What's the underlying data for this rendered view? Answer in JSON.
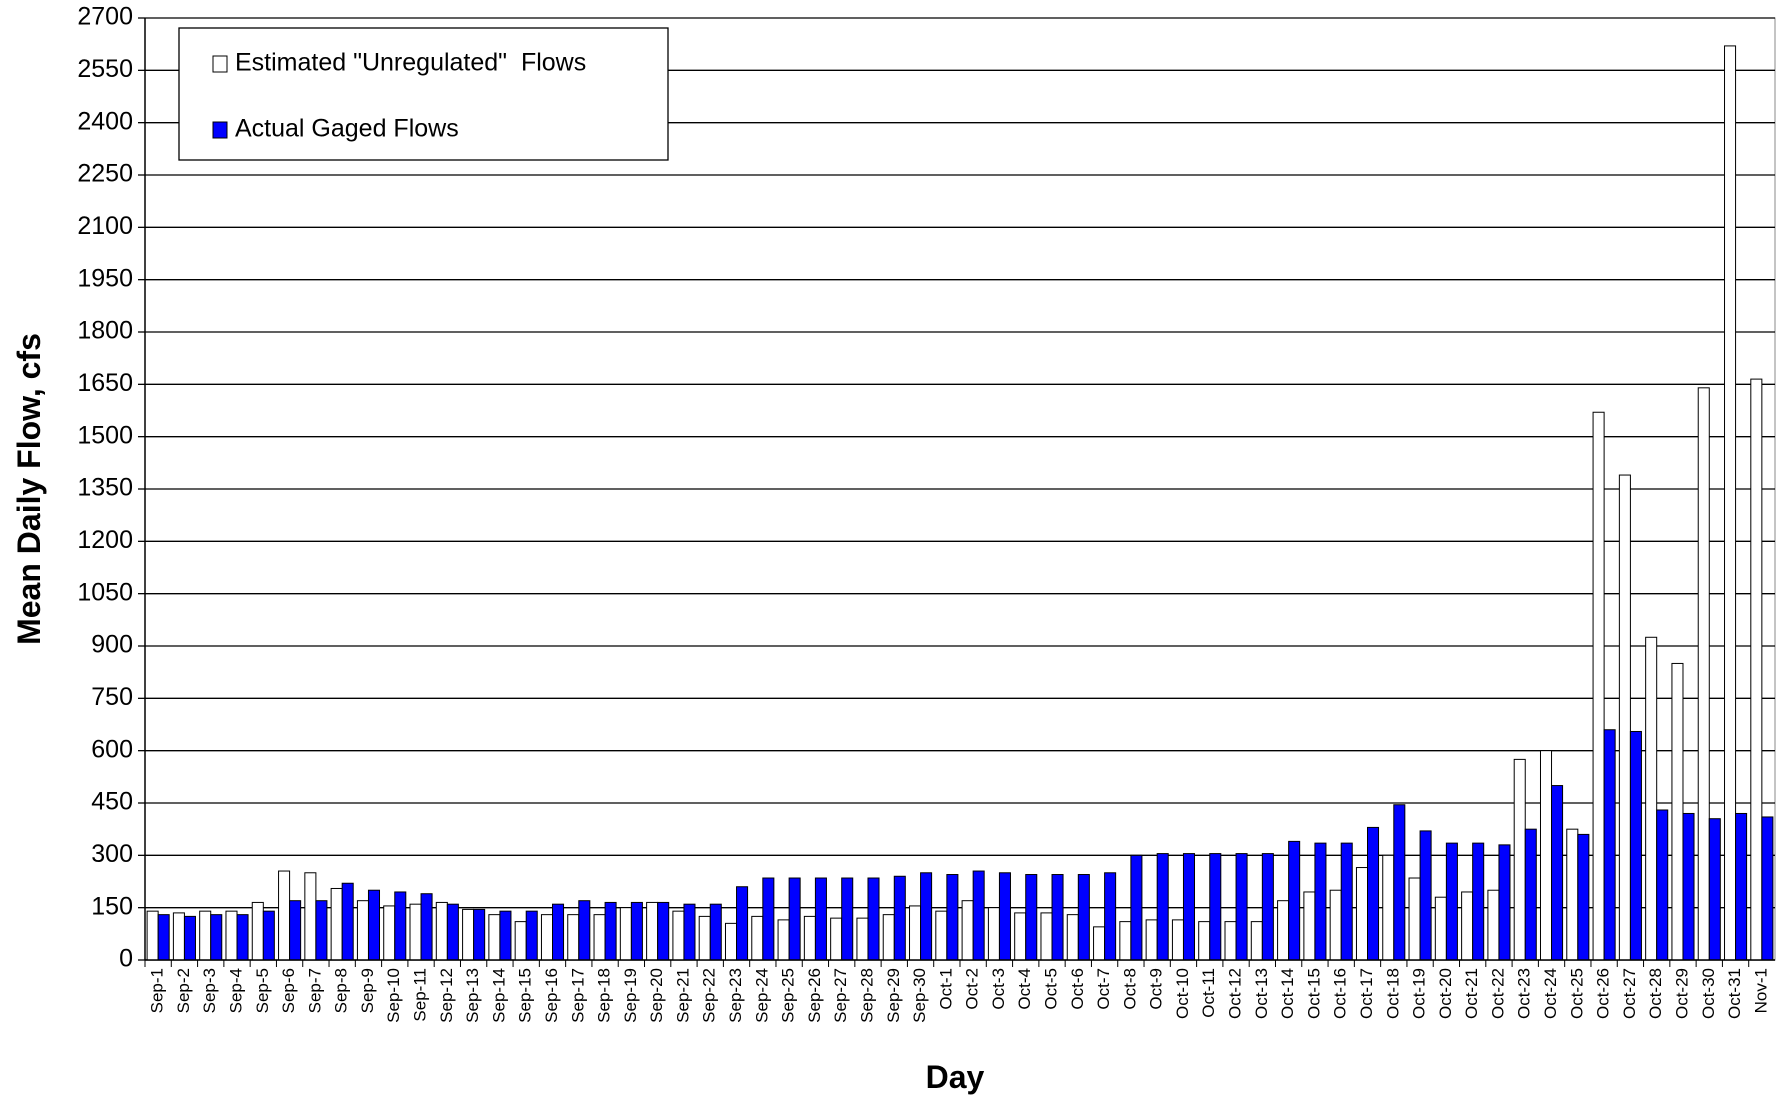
{
  "chart_data": {
    "type": "bar",
    "x_label": "Day",
    "y_label": "Mean Daily Flow, cfs",
    "categories": [
      "Sep-1",
      "Sep-2",
      "Sep-3",
      "Sep-4",
      "Sep-5",
      "Sep-6",
      "Sep-7",
      "Sep-8",
      "Sep-9",
      "Sep-10",
      "Sep-11",
      "Sep-12",
      "Sep-13",
      "Sep-14",
      "Sep-15",
      "Sep-16",
      "Sep-17",
      "Sep-18",
      "Sep-19",
      "Sep-20",
      "Sep-21",
      "Sep-22",
      "Sep-23",
      "Sep-24",
      "Sep-25",
      "Sep-26",
      "Sep-27",
      "Sep-28",
      "Sep-29",
      "Sep-30",
      "Oct-1",
      "Oct-2",
      "Oct-3",
      "Oct-4",
      "Oct-5",
      "Oct-6",
      "Oct-7",
      "Oct-8",
      "Oct-9",
      "Oct-10",
      "Oct-11",
      "Oct-12",
      "Oct-13",
      "Oct-14",
      "Oct-15",
      "Oct-16",
      "Oct-17",
      "Oct-18",
      "Oct-19",
      "Oct-20",
      "Oct-21",
      "Oct-22",
      "Oct-23",
      "Oct-24",
      "Oct-25",
      "Oct-26",
      "Oct-27",
      "Oct-28",
      "Oct-29",
      "Oct-30",
      "Oct-31",
      "Nov-1"
    ],
    "series": [
      {
        "name": "Estimated \"Unregulated\"  Flows",
        "color": "#ffffff",
        "values": [
          140,
          135,
          140,
          140,
          165,
          255,
          250,
          205,
          170,
          155,
          160,
          165,
          145,
          130,
          110,
          130,
          130,
          130,
          150,
          165,
          140,
          125,
          105,
          125,
          115,
          125,
          120,
          120,
          130,
          155,
          140,
          170,
          150,
          135,
          135,
          130,
          95,
          110,
          115,
          115,
          110,
          110,
          110,
          170,
          195,
          200,
          265,
          300,
          235,
          180,
          195,
          200,
          575,
          600,
          375,
          1570,
          1390,
          925,
          850,
          1640,
          2620,
          1665
        ]
      },
      {
        "name": "Actual Gaged Flows",
        "color": "#0000ff",
        "values": [
          130,
          125,
          130,
          130,
          140,
          170,
          170,
          220,
          200,
          195,
          190,
          160,
          145,
          140,
          140,
          160,
          170,
          165,
          165,
          165,
          160,
          160,
          210,
          235,
          235,
          235,
          235,
          235,
          240,
          250,
          245,
          255,
          250,
          245,
          245,
          245,
          250,
          300,
          305,
          305,
          305,
          305,
          305,
          340,
          335,
          335,
          380,
          445,
          370,
          335,
          335,
          330,
          375,
          500,
          360,
          660,
          655,
          430,
          420,
          405,
          420,
          410
        ]
      }
    ],
    "ylim": [
      0,
      2700
    ],
    "yticks": [
      0,
      150,
      300,
      450,
      600,
      750,
      900,
      1050,
      1200,
      1350,
      1500,
      1650,
      1800,
      1950,
      2100,
      2250,
      2400,
      2550,
      2700
    ],
    "grid": true,
    "legend": "upper-left"
  }
}
